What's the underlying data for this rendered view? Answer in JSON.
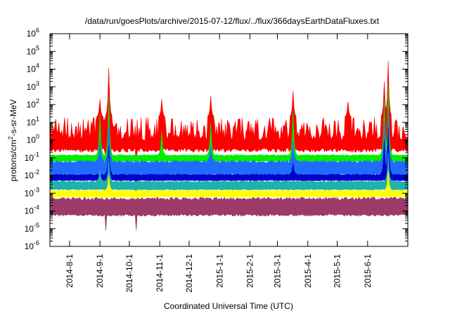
{
  "chart_data": {
    "type": "line",
    "title": "/data/run/goesPlots/archive/2015-07-12/flux/../flux/366daysEarthDataFluxes.txt",
    "xlabel": "Coordinated Universal Time (UTC)",
    "ylabel": {
      "prefix": "protons/cm",
      "superscript": "2",
      "suffix": "-s-sr-MeV"
    },
    "yscale": "log",
    "ylim_exponents": [
      -6,
      6
    ],
    "y_tick_base": "10",
    "y_tick_exponents": [
      "-6",
      "-5",
      "-4",
      "-3",
      "-2",
      "-1",
      "0",
      "1",
      "2",
      "3",
      "4",
      "5",
      "6"
    ],
    "xlim": [
      "2014-07-12",
      "2015-07-12"
    ],
    "x_ticks": [
      {
        "date": "2014-08-01",
        "label": "2014-8-1"
      },
      {
        "date": "2014-09-01",
        "label": "2014-9-1"
      },
      {
        "date": "2014-10-01",
        "label": "2014-10-1"
      },
      {
        "date": "2014-11-01",
        "label": "2014-11-1"
      },
      {
        "date": "2014-12-01",
        "label": "2014-12-1"
      },
      {
        "date": "2015-01-01",
        "label": "2015-1-1"
      },
      {
        "date": "2015-02-01",
        "label": "2015-2-1"
      },
      {
        "date": "2015-03-01",
        "label": "2015-3-1"
      },
      {
        "date": "2015-04-01",
        "label": "2015-4-1"
      },
      {
        "date": "2015-05-01",
        "label": "2015-5-1"
      },
      {
        "date": "2015-06-01",
        "label": "2015-6-1"
      }
    ],
    "grid": false,
    "legend": "none",
    "series": [
      {
        "color": "#ff0000",
        "band_low": 0.2,
        "band_high": 20,
        "spikes": [
          {
            "date": "2014-09-10",
            "peak": 12000
          },
          {
            "date": "2014-09-01",
            "peak": 200
          },
          {
            "date": "2015-06-22",
            "peak": 30000
          },
          {
            "date": "2015-06-18",
            "peak": 2000
          },
          {
            "date": "2014-12-23",
            "peak": 300
          },
          {
            "date": "2015-03-17",
            "peak": 600
          },
          {
            "date": "2014-11-03",
            "peak": 200
          },
          {
            "date": "2015-05-12",
            "peak": 150
          }
        ]
      },
      {
        "color": "#00ee00",
        "band_low": 0.06,
        "band_high": 0.15,
        "spikes": [
          {
            "date": "2014-09-10",
            "peak": 300
          },
          {
            "date": "2015-06-22",
            "peak": 1500
          },
          {
            "date": "2015-06-18",
            "peak": 200
          },
          {
            "date": "2015-03-17",
            "peak": 50
          },
          {
            "date": "2014-12-23",
            "peak": 10
          },
          {
            "date": "2014-09-01",
            "peak": 30
          },
          {
            "date": "2014-11-03",
            "peak": 3
          }
        ]
      },
      {
        "color": "#1f6cff",
        "band_low": 0.01,
        "band_high": 0.07,
        "spikes": [
          {
            "date": "2014-09-10",
            "peak": 10
          },
          {
            "date": "2015-06-22",
            "peak": 50
          },
          {
            "date": "2015-06-18",
            "peak": 10
          },
          {
            "date": "2015-03-17",
            "peak": 1
          },
          {
            "date": "2014-12-23",
            "peak": 0.5
          },
          {
            "date": "2014-09-01",
            "peak": 1
          }
        ]
      },
      {
        "color": "#0000cc",
        "band_low": 0.005,
        "band_high": 0.012,
        "spikes": [
          {
            "date": "2014-09-10",
            "peak": 0.5
          },
          {
            "date": "2015-06-22",
            "peak": 5
          },
          {
            "date": "2015-06-18",
            "peak": 1
          },
          {
            "date": "2015-03-17",
            "peak": 0.05
          }
        ]
      },
      {
        "color": "#20b2aa",
        "band_low": 0.0015,
        "band_high": 0.005,
        "spikes": [
          {
            "date": "2014-09-10",
            "peak": 0.1
          },
          {
            "date": "2015-06-22",
            "peak": 0.2
          },
          {
            "date": "2014-09-01",
            "peak": 0.02
          }
        ]
      },
      {
        "color": "#ffff00",
        "band_low": 0.0006,
        "band_high": 0.0015,
        "spikes": [
          {
            "date": "2014-09-10",
            "peak": 0.01
          },
          {
            "date": "2015-06-22",
            "peak": 0.02
          }
        ]
      },
      {
        "color": "#9c3a6a",
        "band_low": 5e-05,
        "band_high": 0.0006,
        "spikes": []
      }
    ],
    "dropouts": [
      "2014-09-07",
      "2014-10-08"
    ]
  }
}
